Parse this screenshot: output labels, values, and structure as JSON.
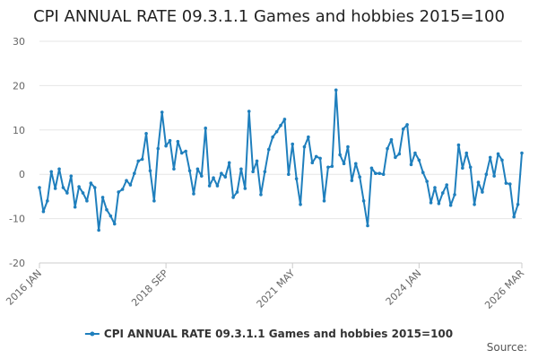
{
  "chart_data": {
    "type": "line",
    "title": "CPI ANNUAL RATE 09.3.1.1 Games and hobbies 2015=100",
    "xlabel": "",
    "ylabel": "",
    "ylim": [
      -20,
      30
    ],
    "y_ticks": [
      30,
      20,
      10,
      0,
      -10,
      -20
    ],
    "x_tick_labels": [
      {
        "label": "2016 JAN",
        "index": 0
      },
      {
        "label": "2018 SEP",
        "index": 32
      },
      {
        "label": "2021 MAY",
        "index": 64
      },
      {
        "label": "2024 JAN",
        "index": 96
      },
      {
        "label": "2026 MAR",
        "index": 122
      }
    ],
    "series": [
      {
        "name": "CPI ANNUAL RATE 09.3.1.1 Games and hobbies 2015=100",
        "color": "#1f7fbd",
        "values": [
          -3.0,
          -8.4,
          -6.0,
          0.6,
          -3.2,
          1.2,
          -3.0,
          -4.2,
          -0.4,
          -7.4,
          -2.8,
          -4.2,
          -6.0,
          -2.0,
          -3.0,
          -12.6,
          -5.2,
          -8.0,
          -9.4,
          -11.2,
          -4.0,
          -3.4,
          -1.4,
          -2.4,
          0.2,
          3.0,
          3.4,
          9.2,
          0.8,
          -6.0,
          5.8,
          14.0,
          6.4,
          7.6,
          1.2,
          7.4,
          4.8,
          5.2,
          0.8,
          -4.4,
          1.2,
          -0.4,
          10.4,
          -2.6,
          -0.8,
          -2.6,
          0.2,
          -0.6,
          2.6,
          -5.2,
          -4.0,
          1.2,
          -3.2,
          14.2,
          0.6,
          3.0,
          -4.6,
          0.6,
          5.6,
          8.4,
          9.6,
          11.0,
          12.4,
          0.0,
          6.8,
          -1.0,
          -6.8,
          6.2,
          8.4,
          2.6,
          4.0,
          3.6,
          -6.0,
          1.6,
          1.8,
          19.0,
          4.4,
          2.4,
          6.2,
          -1.4,
          2.4,
          -0.6,
          -6.0,
          -11.6,
          1.4,
          0.2,
          0.2,
          0.0,
          5.8,
          7.8,
          3.8,
          4.6,
          10.2,
          11.2,
          2.2,
          4.8,
          3.2,
          0.4,
          -1.6,
          -6.4,
          -3.0,
          -6.6,
          -4.2,
          -2.4,
          -7.0,
          -4.6,
          6.6,
          1.4,
          4.8,
          1.6,
          -6.8,
          -1.8,
          -4.0,
          0.0,
          3.8,
          -0.4,
          4.6,
          3.2,
          -2.0,
          -2.2,
          -9.6,
          -6.8,
          4.8
        ]
      }
    ]
  },
  "source_label": "Source:"
}
